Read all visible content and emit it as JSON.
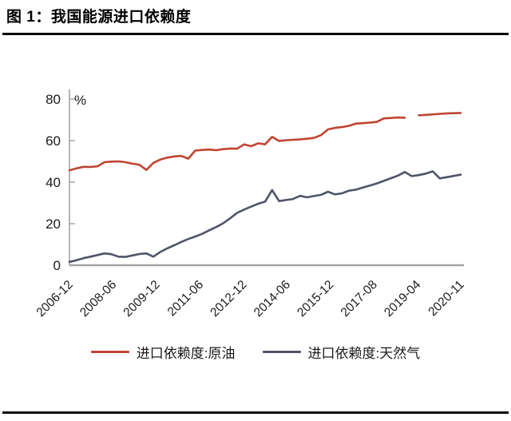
{
  "chart_data": {
    "type": "line",
    "title": "图 1：我国能源进口依赖度",
    "ylabel": "%",
    "ylim": [
      0,
      80
    ],
    "yticks": [
      0,
      20,
      40,
      60,
      80
    ],
    "grid": false,
    "legend_position": "bottom",
    "x_tick_labels": [
      "2006-12",
      "2008-06",
      "2009-12",
      "2011-06",
      "2012-12",
      "2014-06",
      "2015-12",
      "2017-08",
      "2019-04",
      "2020-11"
    ],
    "x": [
      "2006-12",
      "2007-03",
      "2007-06",
      "2007-09",
      "2007-12",
      "2008-03",
      "2008-06",
      "2008-09",
      "2008-12",
      "2009-03",
      "2009-06",
      "2009-09",
      "2009-12",
      "2010-03",
      "2010-06",
      "2010-09",
      "2010-12",
      "2011-03",
      "2011-06",
      "2011-09",
      "2011-12",
      "2012-03",
      "2012-06",
      "2012-09",
      "2012-12",
      "2013-03",
      "2013-06",
      "2013-09",
      "2013-12",
      "2014-03",
      "2014-06",
      "2014-09",
      "2014-12",
      "2015-03",
      "2015-06",
      "2015-09",
      "2015-12",
      "2016-03",
      "2016-06",
      "2016-09",
      "2016-12",
      "2017-03",
      "2017-06",
      "2017-09",
      "2017-12",
      "2018-03",
      "2018-06",
      "2018-09",
      "2018-12",
      "2019-03",
      "2019-06",
      "2019-09",
      "2019-12",
      "2020-03",
      "2020-06",
      "2020-09",
      "2020-11"
    ],
    "series": [
      {
        "name": "进口依赖度:原油",
        "color": "#c04432",
        "values": [
          45.7,
          46.6,
          47.4,
          47.3,
          47.6,
          49.6,
          49.9,
          50.0,
          49.6,
          48.9,
          48.4,
          45.9,
          49.2,
          50.9,
          51.8,
          52.4,
          52.6,
          51.3,
          55.2,
          55.5,
          55.7,
          55.4,
          55.9,
          56.2,
          56.1,
          58.2,
          57.3,
          58.7,
          58.2,
          61.8,
          59.8,
          60.2,
          60.4,
          60.6,
          60.9,
          61.3,
          62.6,
          65.4,
          66.1,
          66.5,
          67.1,
          68.2,
          68.4,
          68.7,
          69.0,
          70.7,
          70.9,
          71.1,
          71.0,
          null,
          72.2,
          72.4,
          72.6,
          72.9,
          73.1,
          73.2,
          73.3
        ]
      },
      {
        "name": "进口依赖度:天然气",
        "color": "#4f5468",
        "values": [
          1.6,
          2.4,
          3.4,
          4.1,
          4.9,
          5.7,
          5.3,
          4.1,
          4.0,
          4.7,
          5.4,
          5.7,
          4.1,
          6.4,
          8.1,
          9.6,
          11.2,
          12.6,
          13.8,
          15.1,
          16.8,
          18.4,
          20.2,
          22.6,
          25.2,
          26.8,
          28.2,
          29.6,
          30.6,
          36.2,
          30.9,
          31.4,
          31.9,
          33.4,
          32.7,
          33.3,
          33.9,
          35.4,
          34.1,
          34.6,
          35.9,
          36.4,
          37.4,
          38.4,
          39.4,
          40.6,
          41.9,
          43.1,
          44.9,
          42.9,
          43.4,
          44.1,
          45.2,
          41.8,
          42.4,
          43.0,
          43.6
        ]
      }
    ],
    "axis_color": "#a3a3a3",
    "text_color": "#1a1a1a"
  }
}
